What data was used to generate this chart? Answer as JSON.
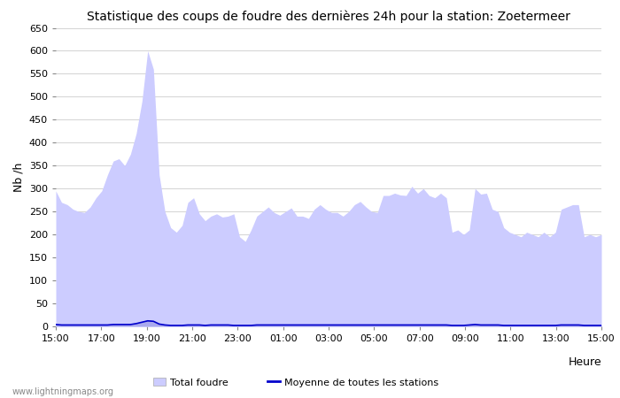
{
  "title": "Statistique des coups de foudre des dernières 24h pour la station: Zoetermeer",
  "xlabel": "Heure",
  "ylabel": "Nb /h",
  "ylim": [
    0,
    650
  ],
  "yticks": [
    0,
    50,
    100,
    150,
    200,
    250,
    300,
    350,
    400,
    450,
    500,
    550,
    600,
    650
  ],
  "x_labels": [
    "15:00",
    "17:00",
    "19:00",
    "21:00",
    "23:00",
    "01:00",
    "03:00",
    "05:00",
    "07:00",
    "09:00",
    "11:00",
    "13:00",
    "15:00"
  ],
  "total_foudre_color": "#ccccff",
  "zoetermeer_color": "#aaaaee",
  "moyenne_color": "#0000cc",
  "background_color": "#ffffff",
  "watermark": "www.lightningmaps.org",
  "total_foudre_values": [
    295,
    270,
    265,
    255,
    250,
    248,
    260,
    280,
    295,
    330,
    360,
    365,
    350,
    375,
    420,
    490,
    600,
    560,
    330,
    250,
    215,
    205,
    220,
    270,
    280,
    245,
    230,
    240,
    245,
    238,
    240,
    245,
    195,
    185,
    210,
    240,
    250,
    260,
    248,
    242,
    250,
    258,
    240,
    240,
    235,
    255,
    265,
    255,
    248,
    248,
    240,
    250,
    265,
    272,
    260,
    250,
    248,
    285,
    285,
    290,
    286,
    285,
    305,
    290,
    300,
    285,
    280,
    290,
    280,
    205,
    210,
    200,
    210,
    300,
    288,
    290,
    255,
    250,
    215,
    205,
    200,
    195,
    205,
    200,
    195,
    205,
    195,
    205,
    255,
    260,
    265,
    265,
    195,
    200,
    195,
    200
  ],
  "zoetermeer_values": [
    5,
    3,
    4,
    3,
    3,
    3,
    4,
    3,
    4,
    4,
    5,
    5,
    5,
    6,
    8,
    11,
    14,
    13,
    7,
    4,
    3,
    3,
    3,
    4,
    4,
    4,
    3,
    4,
    4,
    4,
    4,
    3,
    3,
    3,
    3,
    4,
    4,
    4,
    4,
    4,
    4,
    4,
    4,
    4,
    4,
    4,
    4,
    4,
    4,
    4,
    4,
    4,
    4,
    4,
    4,
    4,
    4,
    4,
    4,
    4,
    4,
    4,
    4,
    4,
    4,
    4,
    4,
    4,
    4,
    3,
    3,
    3,
    4,
    5,
    4,
    4,
    4,
    4,
    3,
    3,
    3,
    3,
    3,
    3,
    3,
    3,
    3,
    3,
    4,
    4,
    4,
    4,
    3,
    3,
    3,
    3
  ],
  "moyenne_values": [
    4,
    3,
    3,
    3,
    3,
    3,
    3,
    3,
    3,
    3,
    4,
    4,
    4,
    4,
    6,
    9,
    12,
    11,
    5,
    3,
    2,
    2,
    2,
    3,
    3,
    3,
    2,
    3,
    3,
    3,
    3,
    2,
    2,
    2,
    2,
    3,
    3,
    3,
    3,
    3,
    3,
    3,
    3,
    3,
    3,
    3,
    3,
    3,
    3,
    3,
    3,
    3,
    3,
    3,
    3,
    3,
    3,
    3,
    3,
    3,
    3,
    3,
    3,
    3,
    3,
    3,
    3,
    3,
    3,
    2,
    2,
    2,
    3,
    4,
    3,
    3,
    3,
    3,
    2,
    2,
    2,
    2,
    2,
    2,
    2,
    2,
    2,
    2,
    3,
    3,
    3,
    3,
    2,
    2,
    2,
    2
  ]
}
